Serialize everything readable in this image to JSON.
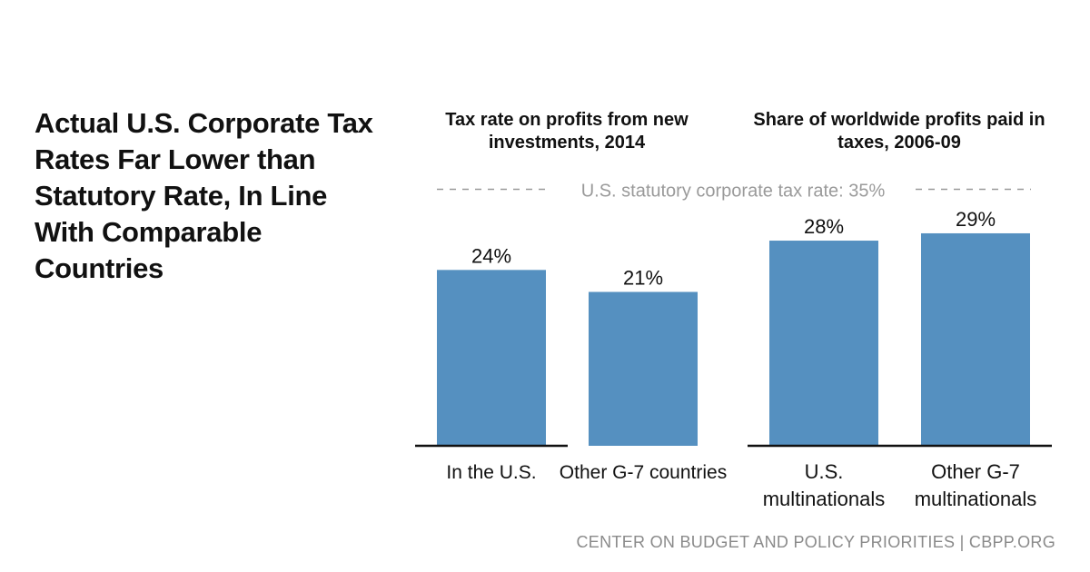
{
  "headline": "Actual U.S. Corporate Tax Rates Far Lower than Statutory Rate, In Line With Comparable Countries",
  "credit": "CENTER ON BUDGET AND POLICY PRIORITIES | CBPP.ORG",
  "colors": {
    "bar": "#5590c0",
    "reference_line": "#9a9a9a",
    "text": "#111111",
    "credit": "#8a8a8a"
  },
  "chart_data": [
    {
      "type": "bar",
      "title": "Tax rate on profits from new investments, 2014",
      "categories": [
        "In the U.S.",
        "Other G-7 countries"
      ],
      "values": [
        24,
        21
      ],
      "data_labels": [
        "24%",
        "21%"
      ],
      "ylim": [
        0,
        38
      ],
      "grid": false
    },
    {
      "type": "bar",
      "title": "Share of worldwide profits paid in taxes, 2006-09",
      "categories": [
        "U.S. multinationals",
        "Other G-7 multinationals"
      ],
      "values": [
        28,
        29
      ],
      "data_labels": [
        "28%",
        "29%"
      ],
      "ylim": [
        0,
        38
      ],
      "grid": false
    }
  ],
  "reference_line": {
    "label": "U.S. statutory corporate tax rate: 35%",
    "value": 35
  }
}
